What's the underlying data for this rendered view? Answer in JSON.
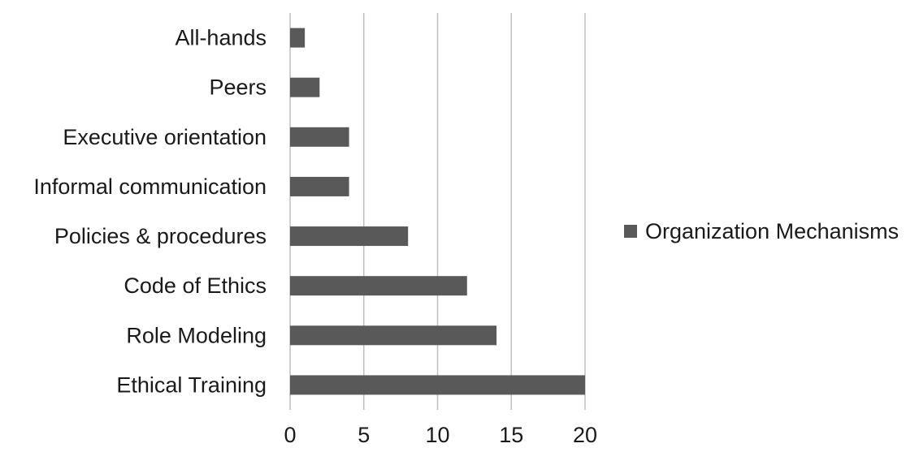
{
  "chart_data": {
    "type": "bar",
    "orientation": "horizontal",
    "categories": [
      "All-hands",
      "Peers",
      "Executive orientation",
      "Informal communication",
      "Policies & procedures",
      "Code of Ethics",
      "Role Modeling",
      "Ethical Training"
    ],
    "series": [
      {
        "name": "Organization Mechanisms",
        "color": "#595959",
        "values": [
          1,
          2,
          4,
          4,
          8,
          12,
          14,
          20
        ]
      }
    ],
    "x_ticks": [
      "0",
      "5",
      "10",
      "15",
      "20"
    ],
    "xlim": [
      0,
      20
    ],
    "grid": "vertical",
    "gridline_color": "#bfbfbf",
    "legend": {
      "position": "right",
      "label": "Organization Mechanisms"
    },
    "title": "",
    "xlabel": "",
    "ylabel": ""
  }
}
